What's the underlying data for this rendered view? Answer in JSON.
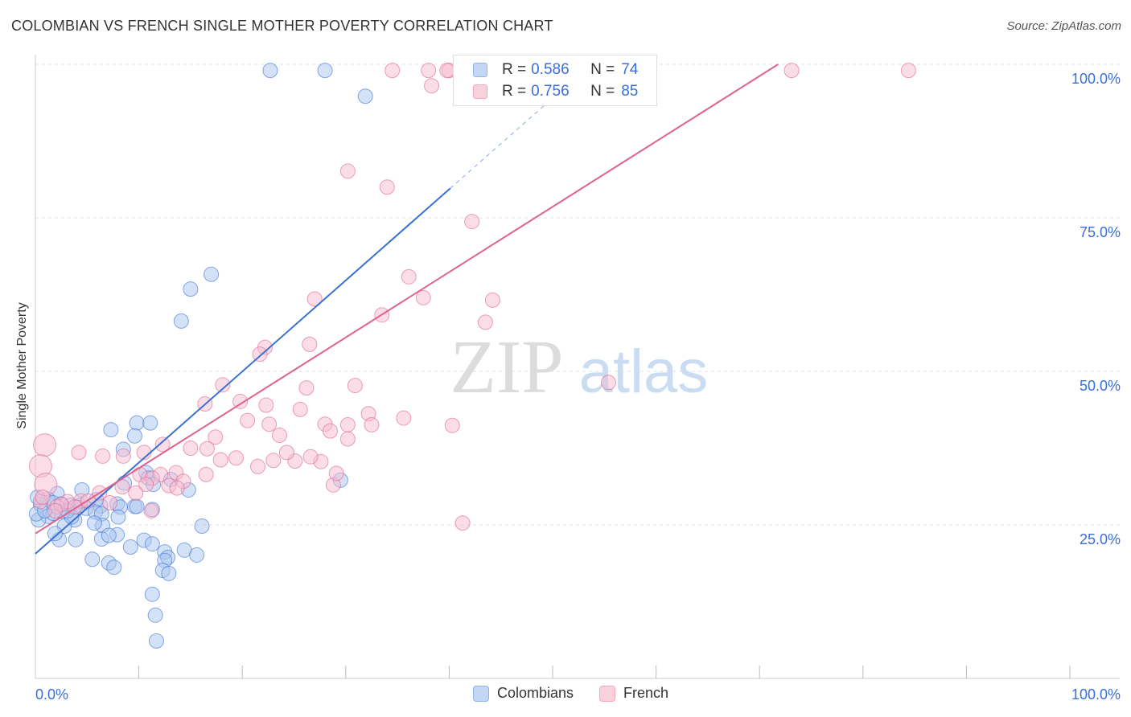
{
  "title": "COLOMBIAN VS FRENCH SINGLE MOTHER POVERTY CORRELATION CHART",
  "source": "Source: ZipAtlas.com",
  "watermark": {
    "zip": "ZIP",
    "atlas": "atlas"
  },
  "legend_top": {
    "rows": [
      {
        "r_label": "R = ",
        "r_value": "0.586",
        "n_label": "N = ",
        "n_value": "74",
        "color": "#8fb4ea"
      },
      {
        "r_label": "R = ",
        "r_value": "0.756",
        "n_label": "N = ",
        "n_value": "85",
        "color": "#f4a8c0"
      }
    ]
  },
  "legend_bottom": [
    {
      "label": "Colombians",
      "color": "#8fb4ea"
    },
    {
      "label": "French",
      "color": "#f4a8c0"
    }
  ],
  "chart_data": {
    "type": "scatter",
    "title": "COLOMBIAN VS FRENCH SINGLE MOTHER POVERTY CORRELATION CHART",
    "xlabel": "",
    "ylabel": "Single Mother Poverty",
    "xlim": [
      0,
      100
    ],
    "ylim": [
      0,
      100
    ],
    "x_tick_labels": [
      {
        "value": 0,
        "label": "0.0%"
      },
      {
        "value": 100,
        "label": "100.0%"
      }
    ],
    "y_tick_labels": [
      {
        "value": 25,
        "label": "25.0%"
      },
      {
        "value": 50,
        "label": "50.0%"
      },
      {
        "value": 75,
        "label": "75.0%"
      },
      {
        "value": 100,
        "label": "100.0%"
      }
    ],
    "grid": true,
    "series": [
      {
        "name": "Colombians",
        "color": "#3a72d4",
        "fill": "#a9c6f0",
        "trend": {
          "x0": 0,
          "y0": 20.3,
          "x1": 40.1,
          "y1": 79.8,
          "dash_to_x": 52.6
        },
        "points": [
          [
            22.7,
            99
          ],
          [
            28,
            99
          ],
          [
            31.9,
            94.8
          ],
          [
            17,
            65.8
          ],
          [
            15,
            63.4
          ],
          [
            14.1,
            58.2
          ],
          [
            9.8,
            41.6
          ],
          [
            7.3,
            40.5
          ],
          [
            9.6,
            39.5
          ],
          [
            8.5,
            37.3
          ],
          [
            10.7,
            33.5
          ],
          [
            10.9,
            32.6
          ],
          [
            8.6,
            31.8
          ],
          [
            13.1,
            32.4
          ],
          [
            14.8,
            30.7
          ],
          [
            4.5,
            30.7
          ],
          [
            2.1,
            30.1
          ],
          [
            1.2,
            29.2
          ],
          [
            0.5,
            28.3
          ],
          [
            2.5,
            28.4
          ],
          [
            3.4,
            28.2
          ],
          [
            6.3,
            28.1
          ],
          [
            5.9,
            29.1
          ],
          [
            4.9,
            27.7
          ],
          [
            1.2,
            26.4
          ],
          [
            0.3,
            25.8
          ],
          [
            0.1,
            26.8
          ],
          [
            7.9,
            28.4
          ],
          [
            4.3,
            28.2
          ],
          [
            5.8,
            27.1
          ],
          [
            8.2,
            27.9
          ],
          [
            9.6,
            28
          ],
          [
            6.4,
            26.8
          ],
          [
            3.8,
            25.8
          ],
          [
            6.5,
            24.9
          ],
          [
            2.8,
            24.8
          ],
          [
            2.3,
            22.6
          ],
          [
            1.9,
            23.6
          ],
          [
            3.9,
            22.6
          ],
          [
            6.4,
            22.7
          ],
          [
            7.9,
            23.4
          ],
          [
            10.5,
            22.5
          ],
          [
            11.3,
            21.9
          ],
          [
            9.2,
            21.4
          ],
          [
            12.5,
            20.6
          ],
          [
            12.8,
            19.7
          ],
          [
            12.5,
            19.2
          ],
          [
            14.4,
            20.9
          ],
          [
            15.6,
            20.1
          ],
          [
            5.5,
            19.4
          ],
          [
            7.1,
            18.8
          ],
          [
            7.6,
            18.1
          ],
          [
            12.3,
            17.6
          ],
          [
            12.9,
            17.1
          ],
          [
            16.1,
            24.8
          ],
          [
            11.3,
            27.5
          ],
          [
            8,
            26.3
          ],
          [
            2.6,
            27.2
          ],
          [
            3.5,
            26.3
          ],
          [
            1.7,
            26.9
          ],
          [
            0.9,
            27.3
          ],
          [
            5.7,
            25.3
          ],
          [
            4.1,
            27.9
          ],
          [
            9.8,
            28
          ],
          [
            11.4,
            31.6
          ],
          [
            11.1,
            41.6
          ],
          [
            7.1,
            23.3
          ],
          [
            11.3,
            13.7
          ],
          [
            11.6,
            10.3
          ],
          [
            11.7,
            6.1
          ],
          [
            29.5,
            32.3
          ],
          [
            0.2,
            29.5
          ],
          [
            1.7,
            28.6
          ],
          [
            3.1,
            27.3
          ]
        ]
      },
      {
        "name": "French",
        "color": "#e0628c",
        "fill": "#f7bcd0",
        "trend": {
          "x0": 0,
          "y0": 23.6,
          "x1": 71.8,
          "y1": 100
        },
        "points": [
          [
            34.5,
            99
          ],
          [
            38,
            99
          ],
          [
            40,
            99
          ],
          [
            39.8,
            99
          ],
          [
            45,
            99
          ],
          [
            46,
            99
          ],
          [
            73.1,
            99
          ],
          [
            84.4,
            99
          ],
          [
            38.3,
            96.5
          ],
          [
            30.2,
            82.6
          ],
          [
            34,
            80
          ],
          [
            42.2,
            74.4
          ],
          [
            36.1,
            65.4
          ],
          [
            37.5,
            62
          ],
          [
            27,
            61.8
          ],
          [
            44.2,
            61.6
          ],
          [
            33.5,
            59.2
          ],
          [
            43.5,
            58
          ],
          [
            26.5,
            54.4
          ],
          [
            22.2,
            53.9
          ],
          [
            21.7,
            52.8
          ],
          [
            26.2,
            47.3
          ],
          [
            30.9,
            47.7
          ],
          [
            55.4,
            48.2
          ],
          [
            18.1,
            47.8
          ],
          [
            19.8,
            45.1
          ],
          [
            16.4,
            44.7
          ],
          [
            22.3,
            44.5
          ],
          [
            25.6,
            43.8
          ],
          [
            32.2,
            43.1
          ],
          [
            35.6,
            42.4
          ],
          [
            20.5,
            42
          ],
          [
            22.6,
            41.4
          ],
          [
            28,
            41.4
          ],
          [
            30.2,
            41.3
          ],
          [
            28.5,
            40.3
          ],
          [
            23.6,
            39.6
          ],
          [
            30.2,
            39
          ],
          [
            17.4,
            39.3
          ],
          [
            12.3,
            38.1
          ],
          [
            15,
            37.5
          ],
          [
            16.6,
            37.4
          ],
          [
            17.9,
            35.6
          ],
          [
            19.4,
            35.9
          ],
          [
            23,
            35.5
          ],
          [
            25.1,
            35.4
          ],
          [
            27.6,
            35.3
          ],
          [
            21.5,
            34.5
          ],
          [
            13.6,
            33.5
          ],
          [
            16.5,
            33.2
          ],
          [
            12.1,
            33.2
          ],
          [
            10.1,
            33.2
          ],
          [
            11.3,
            32.6
          ],
          [
            14.3,
            32.1
          ],
          [
            10.7,
            31.6
          ],
          [
            12.9,
            31.4
          ],
          [
            8.4,
            31.2
          ],
          [
            9.7,
            30.2
          ],
          [
            6.2,
            30.2
          ],
          [
            4.4,
            28.9
          ],
          [
            3.1,
            28.8
          ],
          [
            5.1,
            28.9
          ],
          [
            7.2,
            28.6
          ],
          [
            2.1,
            28
          ],
          [
            0.5,
            28.8
          ],
          [
            3.8,
            27.9
          ],
          [
            0.9,
            38
          ],
          [
            0.5,
            34.6
          ],
          [
            1,
            31.6
          ],
          [
            2.5,
            28.3
          ],
          [
            1.9,
            27.3
          ],
          [
            0.7,
            29.5
          ],
          [
            4.2,
            36.8
          ],
          [
            6.5,
            36.2
          ],
          [
            8.5,
            36.2
          ],
          [
            10.5,
            36.8
          ],
          [
            13.7,
            31
          ],
          [
            11.2,
            27.3
          ],
          [
            28.8,
            31.5
          ],
          [
            29.1,
            33.4
          ],
          [
            41.3,
            25.3
          ],
          [
            24.3,
            36.8
          ],
          [
            26.6,
            36.1
          ],
          [
            32.5,
            41.3
          ],
          [
            40.3,
            41.2
          ]
        ]
      }
    ]
  }
}
